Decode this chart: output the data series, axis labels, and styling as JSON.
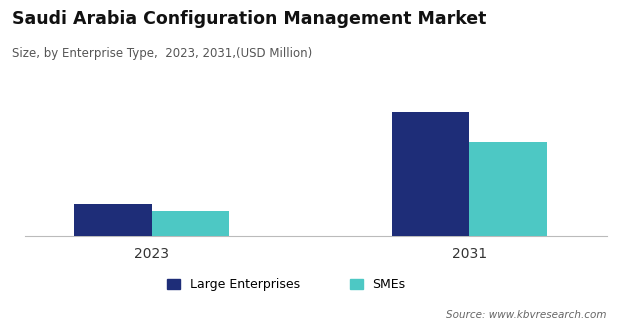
{
  "title": "Saudi Arabia Configuration Management Market",
  "subtitle": "Size, by Enterprise Type,  2023, 2031,(USD Million)",
  "years": [
    "2023",
    "2031"
  ],
  "large_enterprises": [
    26,
    100
  ],
  "smes": [
    20,
    76
  ],
  "bar_color_large": "#1e2d78",
  "bar_color_smes": "#4dc8c4",
  "legend_labels": [
    "Large Enterprises",
    "SMEs"
  ],
  "source_text": "Source: www.kbvresearch.com",
  "background_color": "#ffffff",
  "ylim": [
    0,
    128
  ],
  "bar_width": 0.22,
  "x_positions": [
    0.25,
    1.15
  ]
}
